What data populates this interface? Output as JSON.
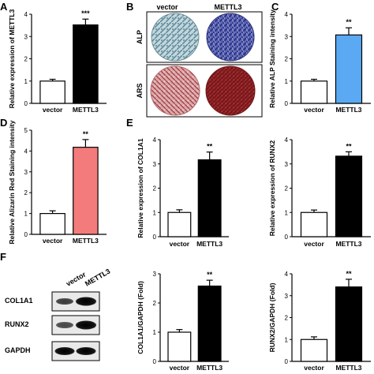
{
  "figure": {
    "panel_letters": [
      "A",
      "B",
      "C",
      "D",
      "E",
      "F"
    ],
    "panel_b": {
      "col_labels": [
        "vector",
        "METTL3"
      ],
      "row_labels": [
        "ALP",
        "ARS"
      ]
    },
    "panel_f": {
      "lane_labels": [
        "vector",
        "METTL3"
      ],
      "band_labels": [
        "COL1A1",
        "RUNX2",
        "GAPDH"
      ]
    }
  },
  "chart_data": [
    {
      "id": "A",
      "type": "bar",
      "categories": [
        "vector",
        "METTL3"
      ],
      "values": [
        1.0,
        3.52
      ],
      "errors": [
        0.08,
        0.26
      ],
      "significance": "***",
      "ylabel": "Relative expression of METTL3",
      "ylim": [
        0,
        4
      ],
      "yticks": [
        "0",
        "1",
        "2",
        "3",
        "4"
      ],
      "colors": [
        "#ffffff",
        "#000000"
      ]
    },
    {
      "id": "C",
      "type": "bar",
      "categories": [
        "vector",
        "METTL3"
      ],
      "values": [
        1.0,
        3.07
      ],
      "errors": [
        0.08,
        0.32
      ],
      "significance": "**",
      "ylabel": "Relative ALP Staining intensity",
      "ylim": [
        0,
        4
      ],
      "yticks": [
        "0",
        "1",
        "2",
        "3",
        "4"
      ],
      "colors": [
        "#ffffff",
        "#5aa9f2"
      ]
    },
    {
      "id": "D",
      "type": "bar",
      "categories": [
        "vector",
        "METTL3"
      ],
      "values": [
        1.0,
        4.18
      ],
      "errors": [
        0.13,
        0.37
      ],
      "significance": "**",
      "ylabel": "Relative Alizarin Red Staining intensity",
      "ylim": [
        0,
        5
      ],
      "yticks": [
        "0",
        "1",
        "2",
        "3",
        "4",
        "5"
      ],
      "colors": [
        "#ffffff",
        "#f47b7b"
      ]
    },
    {
      "id": "E1",
      "type": "bar",
      "categories": [
        "vector",
        "METTL3"
      ],
      "values": [
        1.0,
        3.17
      ],
      "errors": [
        0.11,
        0.32
      ],
      "significance": "**",
      "ylabel": "Relative expression of COL1A1",
      "ylim": [
        0,
        4
      ],
      "yticks": [
        "0",
        "1",
        "2",
        "3",
        "4"
      ],
      "colors": [
        "#ffffff",
        "#000000"
      ]
    },
    {
      "id": "E2",
      "type": "bar",
      "categories": [
        "vector",
        "METTL3"
      ],
      "values": [
        1.0,
        3.32
      ],
      "errors": [
        0.1,
        0.18
      ],
      "significance": "**",
      "ylabel": "Relative expression of RUNX2",
      "ylim": [
        0,
        4
      ],
      "yticks": [
        "0",
        "1",
        "2",
        "3",
        "4"
      ],
      "colors": [
        "#ffffff",
        "#000000"
      ]
    },
    {
      "id": "F1",
      "type": "bar",
      "categories": [
        "vector",
        "METTL3"
      ],
      "values": [
        1.0,
        2.58
      ],
      "errors": [
        0.09,
        0.2
      ],
      "significance": "**",
      "ylabel": "COL1A1/GAPDH (Fold)",
      "ylim": [
        0,
        3
      ],
      "yticks": [
        "0",
        "1",
        "2",
        "3"
      ],
      "colors": [
        "#ffffff",
        "#000000"
      ]
    },
    {
      "id": "F2",
      "type": "bar",
      "categories": [
        "vector",
        "METTL3"
      ],
      "values": [
        1.0,
        3.4
      ],
      "errors": [
        0.12,
        0.35
      ],
      "significance": "**",
      "ylabel": "RUNX2/GAPDH (Fold)",
      "ylim": [
        0,
        4
      ],
      "yticks": [
        "0",
        "1",
        "2",
        "3",
        "4"
      ],
      "colors": [
        "#ffffff",
        "#000000"
      ]
    }
  ]
}
